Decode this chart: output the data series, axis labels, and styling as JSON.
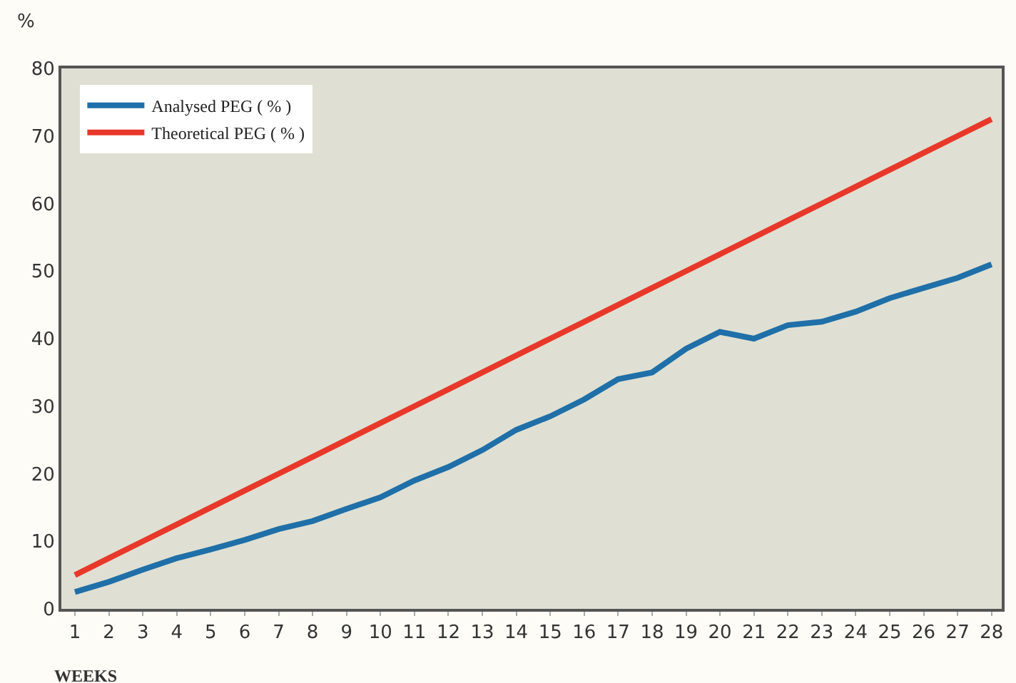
{
  "chart_data": {
    "type": "line",
    "xlabel": "WEEKS",
    "ylabel": "%",
    "x": [
      1,
      2,
      3,
      4,
      5,
      6,
      7,
      8,
      9,
      10,
      11,
      12,
      13,
      14,
      15,
      16,
      17,
      18,
      19,
      20,
      21,
      22,
      23,
      24,
      25,
      26,
      27,
      28
    ],
    "xlim": [
      0.6,
      28.3
    ],
    "xticks": [
      1,
      2,
      3,
      4,
      5,
      6,
      7,
      8,
      9,
      10,
      11,
      12,
      13,
      14,
      15,
      16,
      17,
      18,
      19,
      20,
      21,
      22,
      23,
      24,
      25,
      26,
      27,
      28
    ],
    "ylim": [
      0,
      80
    ],
    "yticks": [
      0,
      10,
      20,
      30,
      40,
      50,
      60,
      70,
      80
    ],
    "legend": "top left",
    "grid": false,
    "marker": "none",
    "line_style": "solid",
    "series": [
      {
        "name": "Analysed PEG ( % )",
        "color": "#1f6fa8",
        "values": [
          2.5,
          4,
          5.8,
          7.5,
          8.8,
          10.2,
          11.8,
          13,
          14.8,
          16.5,
          19,
          21,
          23.5,
          26.5,
          28.5,
          31,
          34,
          35,
          38.5,
          41,
          40,
          42,
          42.5,
          44,
          46,
          47.5,
          49,
          51
        ]
      },
      {
        "name": "Theoretical PEG ( % )",
        "color": "#e8382a",
        "values": [
          5,
          7.5,
          10,
          12.5,
          15,
          17.5,
          20,
          22.5,
          25,
          27.5,
          30,
          32.5,
          35,
          37.5,
          40,
          42.5,
          45,
          47.5,
          50,
          52.5,
          55,
          57.5,
          60,
          62.5,
          65,
          67.5,
          70,
          72.5
        ]
      }
    ]
  }
}
